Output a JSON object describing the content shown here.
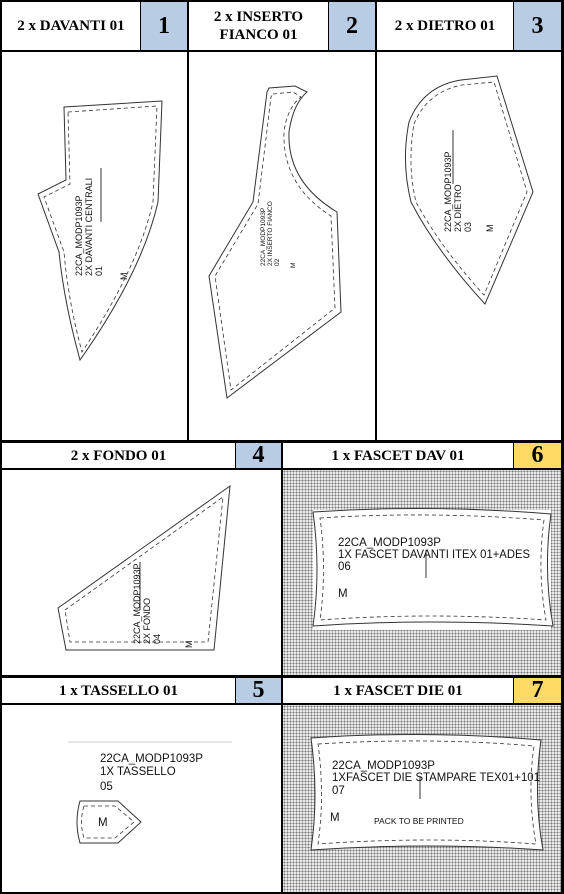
{
  "pieces": [
    {
      "title": "2 x DAVANTI 01",
      "number": "1",
      "lines": [
        "22CA_MODP1093P",
        "2X DAVANTI CENTRALI",
        "01"
      ],
      "size": "M"
    },
    {
      "title": "2 x INSERTO\nFIANCO 01",
      "number": "2",
      "lines": [
        "22CA_MODP1093P",
        "2X INSERTO FIANCO",
        "02"
      ],
      "size": "M"
    },
    {
      "title": "2 x DIETRO 01",
      "number": "3",
      "lines": [
        "22CA_MODP1093P",
        "2X DIETRO",
        "03"
      ],
      "size": "M"
    },
    {
      "title": "2 x FONDO 01",
      "number": "4",
      "lines": [
        "22CA_MODP1093P",
        "2X FONDO",
        "04"
      ],
      "size": "M"
    },
    {
      "title": "1 x TASSELLO 01",
      "number": "5",
      "lines": [
        "22CA_MODP1093P",
        "1X TASSELLO",
        "05"
      ],
      "size": "M"
    },
    {
      "title": "1 x FASCET DAV 01",
      "number": "6",
      "lines": [
        "22CA_MODP1093P",
        "1X FASCET DAVANTI   ITEX 01+ADES",
        "06"
      ],
      "size": "M"
    },
    {
      "title": "1 x FASCET DIE 01",
      "number": "7",
      "lines": [
        "22CA_MODP1093P",
        "1XFASCET DIE STAMPARE TEX01+101",
        "07"
      ],
      "size": "M",
      "note": "PACK TO BE PRINTED"
    }
  ],
  "colors": {
    "number_blue": "#b8cce4",
    "number_gold": "#ffd966",
    "grid": "#000000",
    "outline": "#333333"
  }
}
